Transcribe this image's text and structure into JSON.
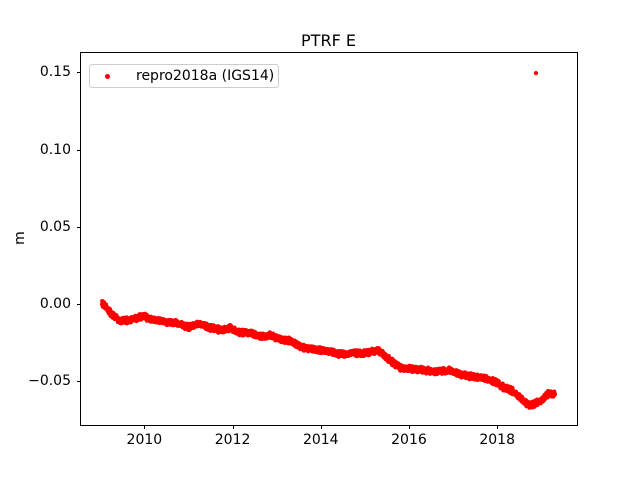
{
  "chart_data": {
    "type": "scatter",
    "title": "PTRF E",
    "xlabel": "",
    "ylabel": "m",
    "grid": false,
    "background": "#ffffff",
    "axis_color": "#000000",
    "xlim": [
      2008.54,
      2019.81
    ],
    "ylim": [
      -0.0785,
      0.1632
    ],
    "xticks": [
      2010,
      2012,
      2014,
      2016,
      2018
    ],
    "xtick_labels": [
      "2010",
      "2012",
      "2014",
      "2016",
      "2018"
    ],
    "yticks": [
      -0.05,
      0.0,
      0.05,
      0.1,
      0.15
    ],
    "ytick_labels": [
      "−0.05",
      "0.00",
      "0.05",
      "0.10",
      "0.15"
    ],
    "legend_position": "upper left",
    "series": [
      {
        "name": "repro2018a (IGS14)",
        "color": "#ff0000",
        "marker": "dot",
        "marker_radius_px": 2.1,
        "x_start": 2009.04,
        "x_end": 2019.31,
        "samples_per_year": 365,
        "noise_amplitude_m": 0.0022,
        "trend_anchors": [
          [
            2009.04,
            0.0005
          ],
          [
            2009.12,
            -0.002
          ],
          [
            2009.25,
            -0.0065
          ],
          [
            2009.45,
            -0.011
          ],
          [
            2009.7,
            -0.0105
          ],
          [
            2009.95,
            -0.008
          ],
          [
            2010.2,
            -0.01
          ],
          [
            2010.5,
            -0.012
          ],
          [
            2010.75,
            -0.0125
          ],
          [
            2011.0,
            -0.015
          ],
          [
            2011.25,
            -0.0132
          ],
          [
            2011.5,
            -0.0155
          ],
          [
            2011.7,
            -0.0168
          ],
          [
            2011.95,
            -0.0155
          ],
          [
            2012.15,
            -0.0185
          ],
          [
            2012.4,
            -0.019
          ],
          [
            2012.6,
            -0.0213
          ],
          [
            2012.85,
            -0.0203
          ],
          [
            2013.1,
            -0.023
          ],
          [
            2013.3,
            -0.024
          ],
          [
            2013.55,
            -0.028
          ],
          [
            2013.75,
            -0.0288
          ],
          [
            2014.0,
            -0.03
          ],
          [
            2014.25,
            -0.0313
          ],
          [
            2014.5,
            -0.0328
          ],
          [
            2014.75,
            -0.0318
          ],
          [
            2015.0,
            -0.032
          ],
          [
            2015.3,
            -0.0302
          ],
          [
            2015.55,
            -0.036
          ],
          [
            2015.8,
            -0.0415
          ],
          [
            2016.0,
            -0.042
          ],
          [
            2016.3,
            -0.0428
          ],
          [
            2016.6,
            -0.044
          ],
          [
            2016.9,
            -0.0432
          ],
          [
            2017.2,
            -0.046
          ],
          [
            2017.5,
            -0.0472
          ],
          [
            2017.8,
            -0.0488
          ],
          [
            2018.0,
            -0.051
          ],
          [
            2018.16,
            -0.0545
          ],
          [
            2018.32,
            -0.0558
          ],
          [
            2018.45,
            -0.059
          ],
          [
            2018.61,
            -0.0636
          ],
          [
            2018.74,
            -0.0655
          ],
          [
            2018.88,
            -0.0645
          ],
          [
            2019.06,
            -0.0615
          ],
          [
            2019.17,
            -0.0577
          ],
          [
            2019.31,
            -0.059
          ]
        ],
        "outliers": [
          [
            2018.88,
            0.1495
          ]
        ]
      }
    ]
  }
}
